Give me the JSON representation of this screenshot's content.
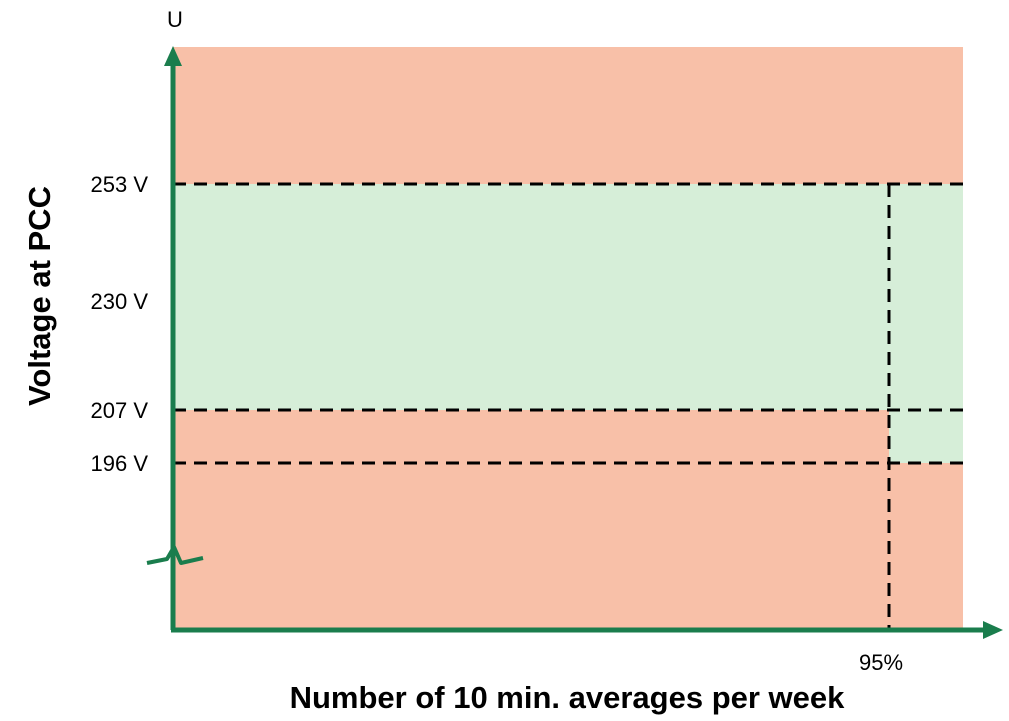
{
  "diagram": {
    "y_axis_symbol": "U",
    "y_axis_title": "Voltage at PCC",
    "x_axis_title": "Number of 10 min. averages per week",
    "voltage_labels": [
      "253 V",
      "230 V",
      "207 V",
      "196 V"
    ],
    "percent_label": "95%",
    "colors": {
      "out_of_limit_zone": "#f8c0a8",
      "permitted_zone": "#d6eed8",
      "axis": "#1a7d4d",
      "threshold_lines": "#000000"
    }
  }
}
